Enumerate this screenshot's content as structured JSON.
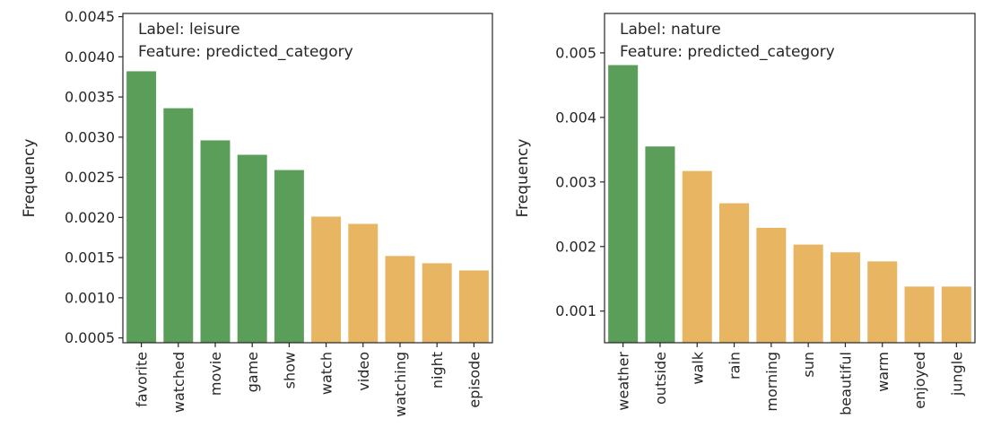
{
  "colors": {
    "highlight": "#5b9e5a",
    "default": "#e8b562"
  },
  "chart_data": [
    {
      "type": "bar",
      "categories": [
        "favorite",
        "watched",
        "movie",
        "game",
        "show",
        "watch",
        "video",
        "watching",
        "night",
        "episode"
      ],
      "values": [
        0.00382,
        0.00336,
        0.00296,
        0.00278,
        0.00259,
        0.00201,
        0.00192,
        0.00152,
        0.00143,
        0.00134
      ],
      "highlight": [
        true,
        true,
        true,
        true,
        true,
        false,
        false,
        false,
        false,
        false
      ],
      "annotation": [
        "Label: leisure",
        "Feature: predicted_category"
      ],
      "title": "",
      "xlabel": "",
      "ylabel": "Frequency",
      "ylim": [
        0.00044,
        0.00454
      ],
      "yticks": [
        "0.0005",
        "0.0010",
        "0.0015",
        "0.0020",
        "0.0025",
        "0.0030",
        "0.0035",
        "0.0040",
        "0.0045"
      ],
      "grid": false,
      "legend": null
    },
    {
      "type": "bar",
      "categories": [
        "weather",
        "outside",
        "walk",
        "rain",
        "morning",
        "sun",
        "beautiful",
        "warm",
        "enjoyed",
        "jungle"
      ],
      "values": [
        0.00481,
        0.00355,
        0.00317,
        0.00267,
        0.00229,
        0.00203,
        0.00191,
        0.00177,
        0.00138,
        0.00138
      ],
      "highlight": [
        true,
        true,
        false,
        false,
        false,
        false,
        false,
        false,
        false,
        false
      ],
      "annotation": [
        "Label: nature",
        "Feature: predicted_category"
      ],
      "title": "",
      "xlabel": "",
      "ylabel": "Frequency",
      "ylim": [
        0.00051,
        0.00561
      ],
      "yticks": [
        "0.001",
        "0.002",
        "0.003",
        "0.004",
        "0.005"
      ],
      "grid": false,
      "legend": null
    }
  ]
}
